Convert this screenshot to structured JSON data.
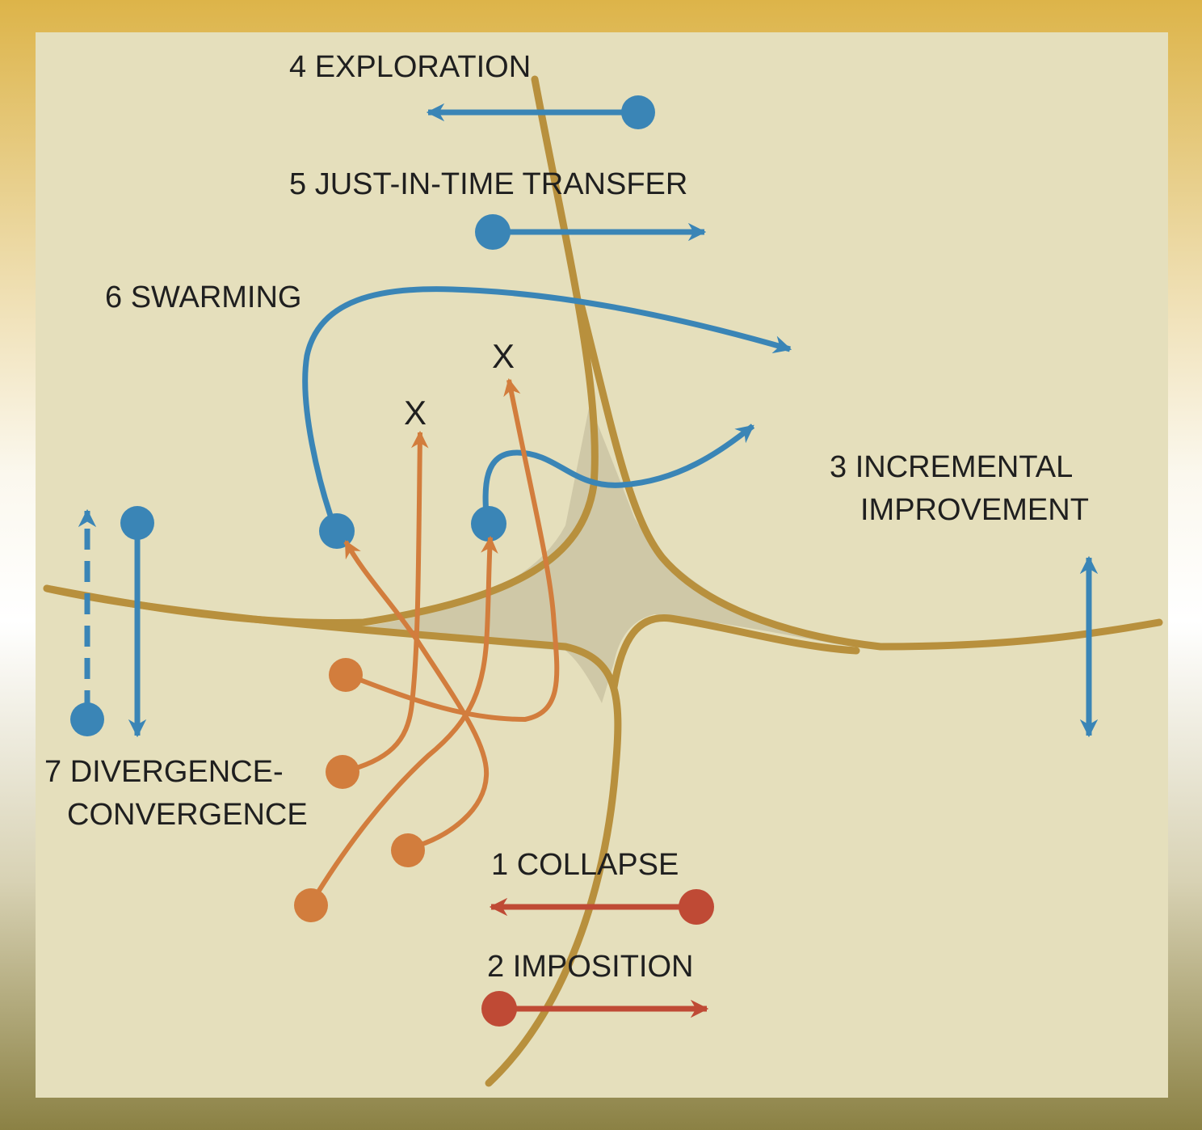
{
  "colors": {
    "background_top": "#ddb449",
    "background_bottom": "#8b8144",
    "panel": "#e5dfbc",
    "manifold_line": "#b8903d",
    "manifold_fill": "#cfc8a7",
    "blue": "#3a85b6",
    "orange": "#d27d3d",
    "red": "#bf4a35"
  },
  "labels": {
    "exploration": "4 EXPLORATION",
    "just_in_time": "5 JUST-IN-TIME TRANSFER",
    "swarming": "6 SWARMING",
    "incremental_line1": "3 INCREMENTAL",
    "incremental_line2": "IMPROVEMENT",
    "divergence_line1": "7 DIVERGENCE-",
    "divergence_line2": "CONVERGENCE",
    "collapse": "1 COLLAPSE",
    "imposition": "2 IMPOSITION",
    "fail_mark_1": "X",
    "fail_mark_2": "X"
  }
}
